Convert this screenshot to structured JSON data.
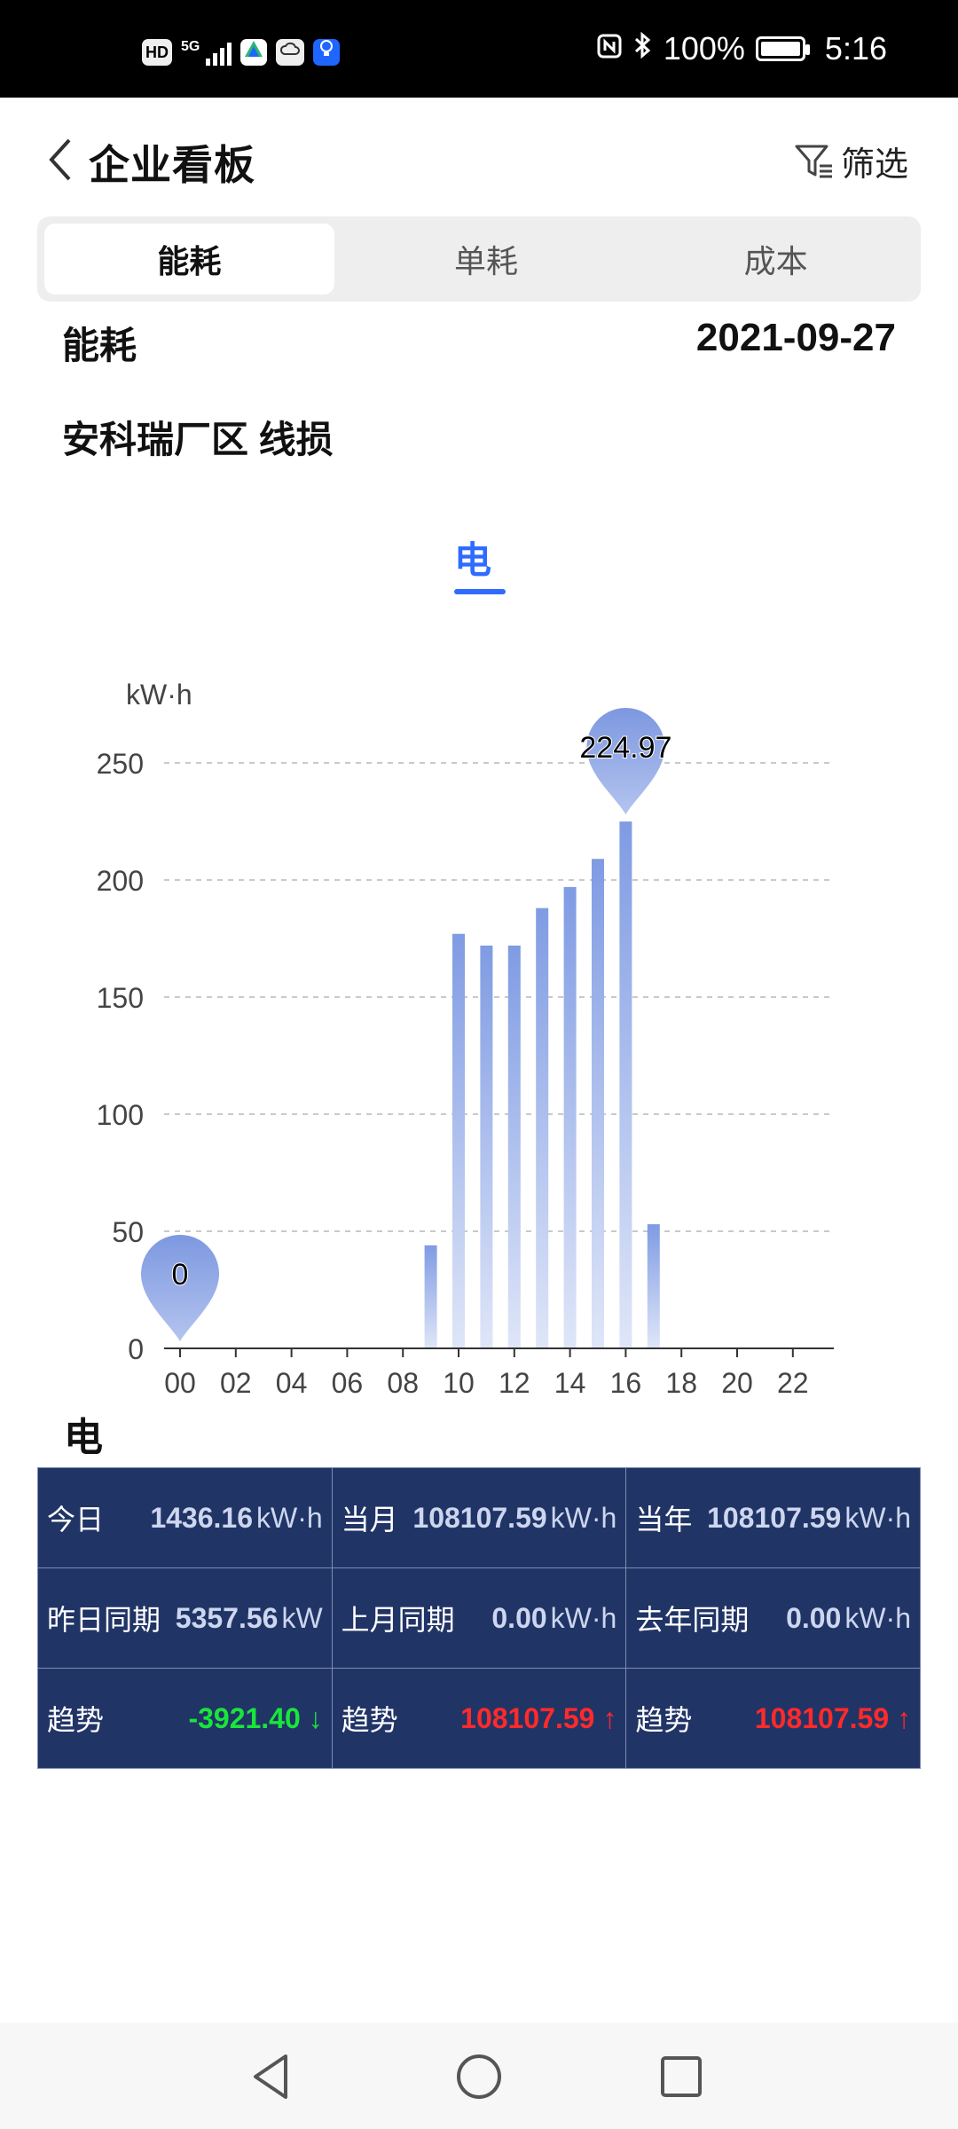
{
  "status_bar": {
    "left_badges": [
      "HD",
      "5G"
    ],
    "battery": "100%",
    "time": "5:16"
  },
  "header": {
    "title": "企业看板",
    "filter_label": "筛选"
  },
  "tabs": [
    {
      "label": "能耗",
      "active": true
    },
    {
      "label": "单耗",
      "active": false
    },
    {
      "label": "成本",
      "active": false
    }
  ],
  "section": {
    "label": "能耗",
    "date": "2021-09-27",
    "subtitle": "安科瑞厂区 线损"
  },
  "energy_tab": {
    "label": "电"
  },
  "chart_data": {
    "type": "bar",
    "ylabel": "kW·h",
    "ylim": [
      0,
      250
    ],
    "yticks": [
      0,
      50,
      100,
      150,
      200,
      250
    ],
    "xticks": [
      "00",
      "02",
      "04",
      "06",
      "08",
      "10",
      "12",
      "14",
      "16",
      "18",
      "20",
      "22"
    ],
    "categories": [
      "00",
      "01",
      "02",
      "03",
      "04",
      "05",
      "06",
      "07",
      "08",
      "09",
      "10",
      "11",
      "12",
      "13",
      "14",
      "15",
      "16",
      "17",
      "18",
      "19",
      "20",
      "21",
      "22",
      "23"
    ],
    "values": [
      0,
      0,
      0,
      0,
      0,
      0,
      0,
      0,
      0,
      44,
      177,
      172,
      172,
      188,
      197,
      209,
      224.97,
      53,
      0,
      0,
      0,
      0,
      0,
      0
    ],
    "markers": [
      {
        "index": 0,
        "label": "0"
      },
      {
        "index": 16,
        "label": "224.97"
      }
    ],
    "bar_color": "#8aa4e6",
    "grid": true
  },
  "table": {
    "title": "电",
    "rows": [
      [
        {
          "label": "今日",
          "value": "1436.16",
          "unit": "kW·h"
        },
        {
          "label": "当月",
          "value": "108107.59",
          "unit": "kW·h"
        },
        {
          "label": "当年",
          "value": "108107.59",
          "unit": "kW·h"
        }
      ],
      [
        {
          "label": "昨日同期",
          "value": "5357.56",
          "unit": "kW"
        },
        {
          "label": "上月同期",
          "value": "0.00",
          "unit": "kW·h"
        },
        {
          "label": "去年同期",
          "value": "0.00",
          "unit": "kW·h"
        }
      ],
      [
        {
          "label": "趋势",
          "value": "-3921.40",
          "arrow": "↓"
        },
        {
          "label": "趋势",
          "value": "108107.59",
          "arrow": "↑"
        },
        {
          "label": "趋势",
          "value": "108107.59",
          "arrow": "↑"
        }
      ]
    ]
  }
}
